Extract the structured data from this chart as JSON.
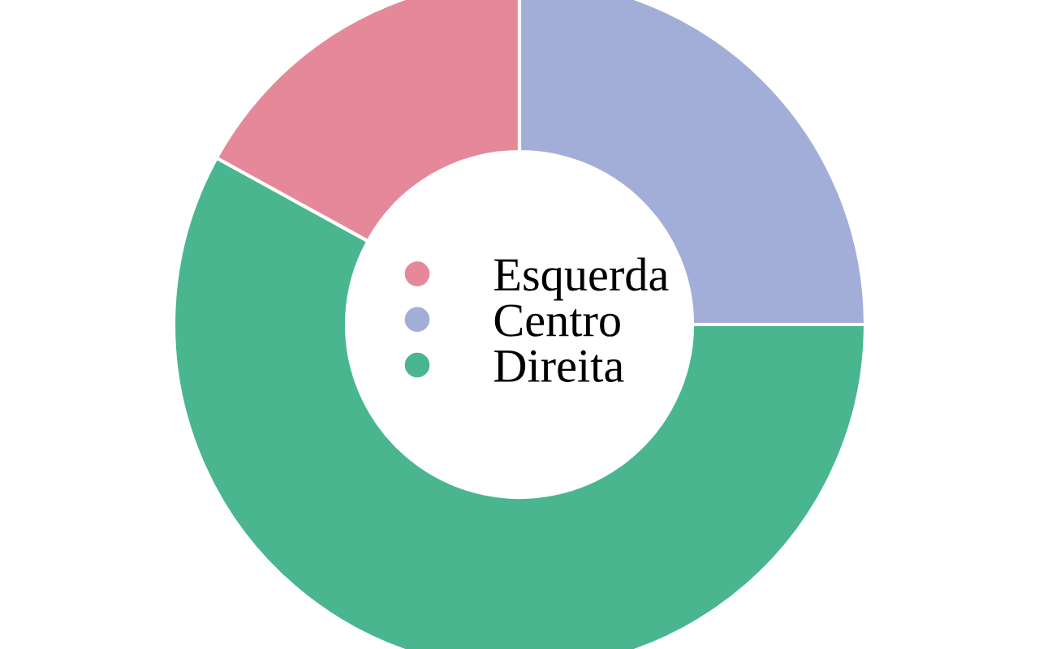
{
  "chart_data": {
    "type": "donut",
    "categories": [
      "Esquerda",
      "Centro",
      "Direita"
    ],
    "values": [
      17,
      25,
      58
    ],
    "colors": [
      "#e5899a",
      "#a3aed8",
      "#49b68f"
    ],
    "legend": "center"
  }
}
